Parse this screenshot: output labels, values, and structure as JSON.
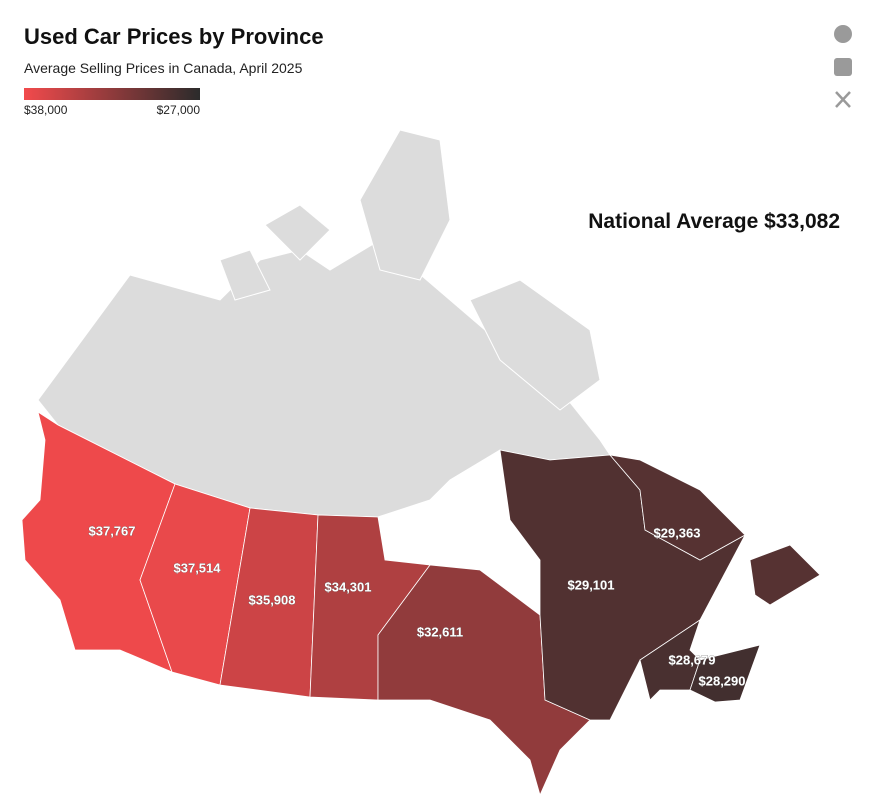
{
  "chart_data": {
    "type": "choropleth",
    "title": "Used Car Prices by Province",
    "subtitle": "Average Selling Prices in Canada, April 2025",
    "annotation": "National Average $33,082",
    "values": [
      37767,
      37514,
      35908,
      34301,
      32611,
      29101,
      29363,
      28679,
      28290
    ],
    "value_labels": [
      "$37,767",
      "$37,514",
      "$35,908",
      "$34,301",
      "$32,611",
      "$29,101",
      "$29,363",
      "$28,679",
      "$28,290"
    ],
    "color_scale": {
      "domain": [
        {
          "value": 38000,
          "label": "$38,000"
        },
        {
          "value": 27000,
          "label": "$27,000"
        }
      ],
      "colors": [
        "#f24a4c",
        "#2b2b2b"
      ]
    }
  }
}
